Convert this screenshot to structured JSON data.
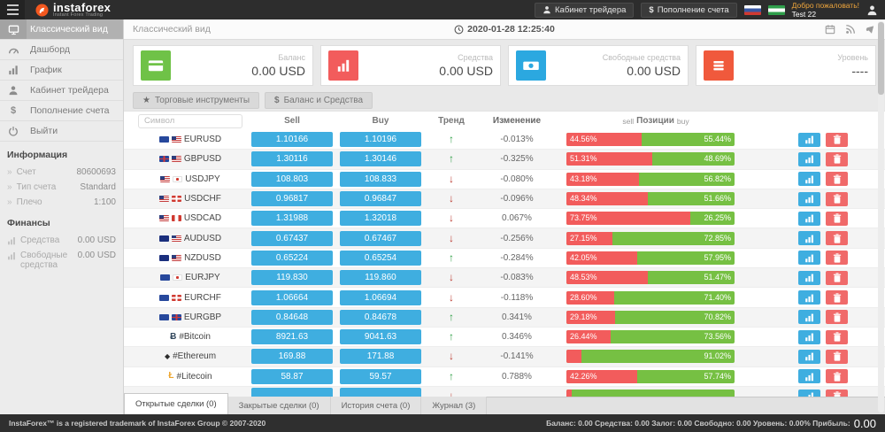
{
  "header": {
    "brand": {
      "name": "instaforex",
      "tagline": "Instant Forex Trading"
    },
    "trader_room": "Кабинет трейдера",
    "deposit": "Пополнение счета",
    "welcome": "Добро пожаловать!",
    "username": "Test 22"
  },
  "sidebar": {
    "items": [
      {
        "icon": "desktop-icon",
        "label": "Классический вид",
        "active": true
      },
      {
        "icon": "dashboard-icon",
        "label": "Дашборд",
        "active": false
      },
      {
        "icon": "bar-chart-icon",
        "label": "График",
        "active": false
      },
      {
        "icon": "user-icon",
        "label": "Кабинет трейдера",
        "active": false
      },
      {
        "icon": "dollar-icon",
        "label": "Пополнение счета",
        "active": false
      },
      {
        "icon": "power-icon",
        "label": "Выйти",
        "active": false
      }
    ],
    "info": {
      "title": "Информация",
      "rows": [
        {
          "label": "Счет",
          "value": "80600693"
        },
        {
          "label": "Тип счета",
          "value": "Standard"
        },
        {
          "label": "Плечо",
          "value": "1:100"
        }
      ]
    },
    "finance": {
      "title": "Финансы",
      "rows": [
        {
          "label": "Средства",
          "value": "0.00 USD"
        },
        {
          "label": "Свободные средства",
          "value": "0.00 USD"
        }
      ]
    }
  },
  "topbar": {
    "title": "Классический вид",
    "datetime": "2020-01-28 12:25:40"
  },
  "cards": [
    {
      "icon": "credit-card-icon",
      "label": "Баланс",
      "value": "0.00 USD",
      "color": "#6fc247"
    },
    {
      "icon": "chart-bars-icon",
      "label": "Средства",
      "value": "0.00 USD",
      "color": "#f25c5c"
    },
    {
      "icon": "banknote-icon",
      "label": "Свободные средства",
      "value": "0.00 USD",
      "color": "#2ba8e0"
    },
    {
      "icon": "list-icon",
      "label": "Уровень",
      "value": "----",
      "color": "#f0593c"
    }
  ],
  "toolbar": {
    "instruments": "Торговые инструменты",
    "balance": "Баланс и Средства"
  },
  "table": {
    "symbol_placeholder": "Символ",
    "headers": {
      "sell": "Sell",
      "buy": "Buy",
      "trend": "Тренд",
      "change": "Изменение",
      "pos_sell": "sell",
      "pos": "Позиции",
      "pos_buy": "buy"
    },
    "rows": [
      {
        "symbol": "EURUSD",
        "flags": [
          "eu",
          "us"
        ],
        "sell": "1.10166",
        "buy": "1.10196",
        "trend": "up",
        "change": "-0.013%",
        "sell_pct": 44.56,
        "sell_label": "44.56%",
        "buy_label": "55.44%"
      },
      {
        "symbol": "GBPUSD",
        "flags": [
          "gb",
          "us"
        ],
        "sell": "1.30116",
        "buy": "1.30146",
        "trend": "up",
        "change": "-0.325%",
        "sell_pct": 51.31,
        "sell_label": "51.31%",
        "buy_label": "48.69%"
      },
      {
        "symbol": "USDJPY",
        "flags": [
          "us",
          "jp"
        ],
        "sell": "108.803",
        "buy": "108.833",
        "trend": "down",
        "change": "-0.080%",
        "sell_pct": 43.18,
        "sell_label": "43.18%",
        "buy_label": "56.82%"
      },
      {
        "symbol": "USDCHF",
        "flags": [
          "us",
          "ch"
        ],
        "sell": "0.96817",
        "buy": "0.96847",
        "trend": "down",
        "change": "-0.096%",
        "sell_pct": 48.34,
        "sell_label": "48.34%",
        "buy_label": "51.66%"
      },
      {
        "symbol": "USDCAD",
        "flags": [
          "us",
          "ca"
        ],
        "sell": "1.31988",
        "buy": "1.32018",
        "trend": "down",
        "change": "0.067%",
        "sell_pct": 73.75,
        "sell_label": "73.75%",
        "buy_label": "26.25%"
      },
      {
        "symbol": "AUDUSD",
        "flags": [
          "au",
          "us"
        ],
        "sell": "0.67437",
        "buy": "0.67467",
        "trend": "down",
        "change": "-0.256%",
        "sell_pct": 27.15,
        "sell_label": "27.15%",
        "buy_label": "72.85%"
      },
      {
        "symbol": "NZDUSD",
        "flags": [
          "nz",
          "us"
        ],
        "sell": "0.65224",
        "buy": "0.65254",
        "trend": "up",
        "change": "-0.284%",
        "sell_pct": 42.05,
        "sell_label": "42.05%",
        "buy_label": "57.95%"
      },
      {
        "symbol": "EURJPY",
        "flags": [
          "eu",
          "jp"
        ],
        "sell": "119.830",
        "buy": "119.860",
        "trend": "down",
        "change": "-0.083%",
        "sell_pct": 48.53,
        "sell_label": "48.53%",
        "buy_label": "51.47%"
      },
      {
        "symbol": "EURCHF",
        "flags": [
          "eu",
          "ch"
        ],
        "sell": "1.06664",
        "buy": "1.06694",
        "trend": "down",
        "change": "-0.118%",
        "sell_pct": 28.6,
        "sell_label": "28.60%",
        "buy_label": "71.40%"
      },
      {
        "symbol": "EURGBP",
        "flags": [
          "eu",
          "gb"
        ],
        "sell": "0.84648",
        "buy": "0.84678",
        "trend": "up",
        "change": "0.341%",
        "sell_pct": 29.18,
        "sell_label": "29.18%",
        "buy_label": "70.82%"
      },
      {
        "symbol": "#Bitcoin",
        "icon": "bitcoin-icon",
        "sell": "8921.63",
        "buy": "9041.63",
        "trend": "up",
        "change": "0.346%",
        "sell_pct": 26.44,
        "sell_label": "26.44%",
        "buy_label": "73.56%"
      },
      {
        "symbol": "#Ethereum",
        "icon": "ethereum-icon",
        "sell": "169.88",
        "buy": "171.88",
        "trend": "down",
        "change": "-0.141%",
        "sell_pct": 8.98,
        "sell_label": "",
        "buy_label": "91.02%"
      },
      {
        "symbol": "#Litecoin",
        "icon": "litecoin-icon",
        "sell": "58.87",
        "buy": "59.57",
        "trend": "up",
        "change": "0.788%",
        "sell_pct": 42.26,
        "sell_label": "42.26%",
        "buy_label": "57.74%"
      }
    ],
    "partial_row": {
      "symbol": "",
      "icon": "generic-crypto-icon",
      "sell": "",
      "buy": "",
      "trend": "down",
      "change": "",
      "sell_pct": 3,
      "sell_label": "",
      "buy_label": ""
    }
  },
  "tabs": [
    {
      "label": "Открытые сделки (0)",
      "active": true
    },
    {
      "label": "Закрытые сделки (0)",
      "active": false
    },
    {
      "label": "История счета (0)",
      "active": false
    },
    {
      "label": "Журнал (3)",
      "active": false
    }
  ],
  "footer": {
    "copyright": "InstaForex™ is a registered trademark of InstaForex Group © 2007-2020",
    "stats": "Баланс: 0.00 Средства: 0.00 Залог: 0.00 Свободно: 0.00 Уровень: 0.00% Прибыль:",
    "profit": "0.00"
  },
  "colors": {
    "accent_blue": "#3faee0",
    "green": "#76c043",
    "red": "#f25c5c"
  }
}
